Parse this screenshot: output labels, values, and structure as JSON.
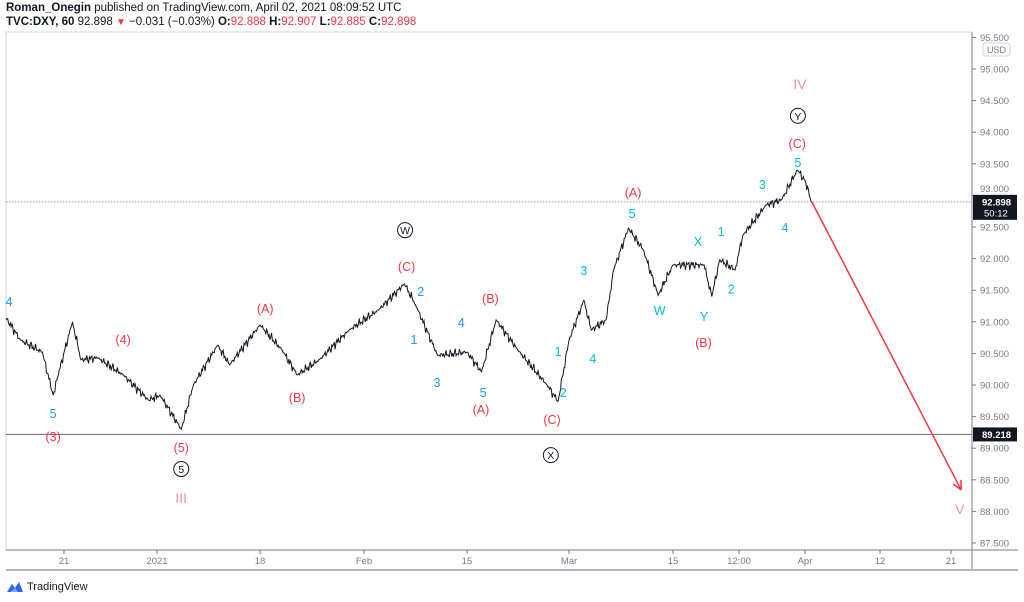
{
  "header": {
    "author": "Roman_Onegin",
    "published": "published on TradingView.com, April 02, 2021 08:09:52 UTC",
    "symbol": "TVC:DXY, 60",
    "last": "92.898",
    "change": "−0.031 (−0.03%)",
    "o_label": "O:",
    "o": "92.888",
    "h_label": "H:",
    "h": "92.907",
    "l_label": "L:",
    "l": "92.885",
    "c_label": "C:",
    "c": "92.898",
    "change_icon": "triangle-down-icon"
  },
  "colors": {
    "up_down_red": "#f23645",
    "wave_red": "#f23645",
    "wave_blue": "#2196f3",
    "wave_cyan": "#00bcd4",
    "roman_pink": "#f48fb1",
    "projection": "#f23645",
    "line": "#131722"
  },
  "footer": {
    "brand": "TradingView"
  },
  "chart_data": {
    "type": "line",
    "currency": "USD",
    "ylim": [
      87.3,
      95.6
    ],
    "y_ticks": [
      "95.500",
      "95.000",
      "94.500",
      "94.000",
      "93.500",
      "93.000",
      "92.500",
      "92.000",
      "91.500",
      "91.000",
      "90.500",
      "90.000",
      "89.500",
      "89.000",
      "88.500",
      "88.000",
      "87.500"
    ],
    "x_ticks": [
      {
        "label": "21",
        "date": "2020-12-21"
      },
      {
        "label": "2021",
        "date": "2021-01-01"
      },
      {
        "label": "18",
        "date": "2021-01-18"
      },
      {
        "label": "Feb",
        "date": "2021-02-01"
      },
      {
        "label": "15",
        "date": "2021-02-15"
      },
      {
        "label": "Mar",
        "date": "2021-03-01"
      },
      {
        "label": "15",
        "date": "2021-03-15"
      },
      {
        "label": "12:00",
        "date": "2021-03-23T12:00"
      },
      {
        "label": "Apr",
        "date": "2021-04-01"
      },
      {
        "label": "12",
        "date": "2021-04-12"
      },
      {
        "label": "21",
        "date": "2021-04-21"
      }
    ],
    "last_price": {
      "value": 92.898,
      "label": "92.898",
      "countdown": "50:12"
    },
    "horizontal_line": {
      "value": 89.218,
      "label": "89.218"
    },
    "series": [
      [
        "2020-12-13",
        91.06
      ],
      [
        "2020-12-15",
        90.71
      ],
      [
        "2020-12-18",
        90.52
      ],
      [
        "2020-12-19T12:00",
        89.84
      ],
      [
        "2020-12-20",
        90.08
      ],
      [
        "2020-12-22",
        91.0
      ],
      [
        "2020-12-23",
        90.4
      ],
      [
        "2020-12-25",
        90.43
      ],
      [
        "2020-12-28",
        90.16
      ],
      [
        "2020-12-31",
        89.76
      ],
      [
        "2021-01-01T12:00",
        89.84
      ],
      [
        "2021-01-05",
        89.3
      ],
      [
        "2021-01-07",
        90.0
      ],
      [
        "2021-01-11",
        90.63
      ],
      [
        "2021-01-13",
        90.32
      ],
      [
        "2021-01-18",
        90.95
      ],
      [
        "2021-01-21",
        90.55
      ],
      [
        "2021-01-23",
        90.16
      ],
      [
        "2021-01-26",
        90.4
      ],
      [
        "2021-01-30",
        90.87
      ],
      [
        "2021-02-03",
        91.19
      ],
      [
        "2021-02-06T12:00",
        91.6
      ],
      [
        "2021-02-08",
        91.27
      ],
      [
        "2021-02-11",
        90.47
      ],
      [
        "2021-02-15",
        90.52
      ],
      [
        "2021-02-17",
        90.21
      ],
      [
        "2021-02-19",
        91.03
      ],
      [
        "2021-02-22",
        90.55
      ],
      [
        "2021-02-26",
        90.0
      ],
      [
        "2021-02-27T12:00",
        89.74
      ],
      [
        "2021-03-01",
        90.71
      ],
      [
        "2021-03-03",
        91.34
      ],
      [
        "2021-03-04",
        90.87
      ],
      [
        "2021-03-06",
        91.03
      ],
      [
        "2021-03-07",
        91.82
      ],
      [
        "2021-03-09",
        92.48
      ],
      [
        "2021-03-11",
        92.14
      ],
      [
        "2021-03-13",
        91.42
      ],
      [
        "2021-03-15",
        91.9
      ],
      [
        "2021-03-19",
        91.9
      ],
      [
        "2021-03-20",
        91.4
      ],
      [
        "2021-03-21",
        91.98
      ],
      [
        "2021-03-23",
        91.82
      ],
      [
        "2021-03-24",
        92.37
      ],
      [
        "2021-03-27",
        92.85
      ],
      [
        "2021-03-29",
        92.93
      ],
      [
        "2021-03-31",
        93.4
      ],
      [
        "2021-04-01",
        93.24
      ],
      [
        "2021-04-01T18:00",
        92.96
      ],
      [
        "2021-04-02",
        92.898
      ]
    ],
    "projection": {
      "from": [
        "2021-04-02",
        92.898
      ],
      "to": [
        "2021-04-22T12:00",
        88.34
      ]
    },
    "annotations": [
      {
        "text": "4",
        "date": "2020-12-13T10:00",
        "price": 91.33,
        "color": "blue"
      },
      {
        "text": "(4)",
        "date": "2020-12-28",
        "price": 90.73,
        "color": "red"
      },
      {
        "text": "5",
        "date": "2020-12-19T12:00",
        "price": 89.56,
        "color": "blue"
      },
      {
        "text": "(3)",
        "date": "2020-12-19T12:00",
        "price": 89.19,
        "color": "red"
      },
      {
        "text": "(A)",
        "date": "2021-01-18T17:00",
        "price": 91.22,
        "color": "red"
      },
      {
        "text": "(B)",
        "date": "2021-01-23",
        "price": 89.81,
        "color": "red"
      },
      {
        "text": "(5)",
        "date": "2021-01-05",
        "price": 89.02,
        "color": "red"
      },
      {
        "text": "5",
        "date": "2021-01-05",
        "price": 88.67,
        "color": "black",
        "circled": true
      },
      {
        "text": "III",
        "date": "2021-01-05",
        "price": 88.21,
        "color": "pink"
      },
      {
        "text": "W",
        "date": "2021-02-06T14:00",
        "price": 92.45,
        "color": "black",
        "circled": true
      },
      {
        "text": "(C)",
        "date": "2021-02-06T19:00",
        "price": 91.88,
        "color": "red"
      },
      {
        "text": "2",
        "date": "2021-02-08T17:00",
        "price": 91.49,
        "color": "blue"
      },
      {
        "text": "1",
        "date": "2021-02-07T19:00",
        "price": 90.73,
        "color": "blue"
      },
      {
        "text": "4",
        "date": "2021-02-14T05:00",
        "price": 91.0,
        "color": "blue"
      },
      {
        "text": "3",
        "date": "2021-02-10T22:00",
        "price": 90.05,
        "color": "blue"
      },
      {
        "text": "5",
        "date": "2021-02-17T05:00",
        "price": 89.89,
        "color": "blue"
      },
      {
        "text": "(B)",
        "date": "2021-02-18T05:00",
        "price": 91.38,
        "color": "red"
      },
      {
        "text": "(A)",
        "date": "2021-02-16T22:00",
        "price": 89.62,
        "color": "red"
      },
      {
        "text": "(C)",
        "date": "2021-02-26T16:00",
        "price": 89.46,
        "color": "red"
      },
      {
        "text": "X",
        "date": "2021-02-26T12:00",
        "price": 88.89,
        "color": "black",
        "circled": true
      },
      {
        "text": "1",
        "date": "2021-02-27T12:00",
        "price": 90.54,
        "color": "cyan"
      },
      {
        "text": "2",
        "date": "2021-02-28T05:00",
        "price": 89.89,
        "color": "cyan"
      },
      {
        "text": "4",
        "date": "2021-03-04T05:00",
        "price": 90.43,
        "color": "cyan"
      },
      {
        "text": "3",
        "date": "2021-03-03",
        "price": 91.82,
        "color": "cyan"
      },
      {
        "text": "5",
        "date": "2021-03-09T12:00",
        "price": 92.72,
        "color": "cyan"
      },
      {
        "text": "(A)",
        "date": "2021-03-09T15:00",
        "price": 93.05,
        "color": "red"
      },
      {
        "text": "W",
        "date": "2021-03-13T05:00",
        "price": 91.19,
        "color": "cyan"
      },
      {
        "text": "X",
        "date": "2021-03-18T05:00",
        "price": 92.28,
        "color": "cyan"
      },
      {
        "text": "Y",
        "date": "2021-03-19",
        "price": 91.09,
        "color": "cyan"
      },
      {
        "text": "(B)",
        "date": "2021-03-18T22:00",
        "price": 90.68,
        "color": "red"
      },
      {
        "text": "1",
        "date": "2021-03-21T05:00",
        "price": 92.44,
        "color": "cyan"
      },
      {
        "text": "2",
        "date": "2021-03-22T12:00",
        "price": 91.53,
        "color": "cyan"
      },
      {
        "text": "3",
        "date": "2021-03-26T12:00",
        "price": 93.18,
        "color": "cyan"
      },
      {
        "text": "4",
        "date": "2021-03-29T10:00",
        "price": 92.5,
        "color": "cyan"
      },
      {
        "text": "5",
        "date": "2021-03-31T02:00",
        "price": 93.53,
        "color": "cyan"
      },
      {
        "text": "(C)",
        "date": "2021-03-31T00:00",
        "price": 93.83,
        "color": "red"
      },
      {
        "text": "Y",
        "date": "2021-03-31T02:00",
        "price": 94.26,
        "color": "black",
        "circled": true
      },
      {
        "text": "IV",
        "date": "2021-03-31T08:00",
        "price": 94.76,
        "color": "pink"
      },
      {
        "text": "V",
        "date": "2021-04-22T07:00",
        "price": 88.04,
        "color": "pink"
      }
    ]
  }
}
